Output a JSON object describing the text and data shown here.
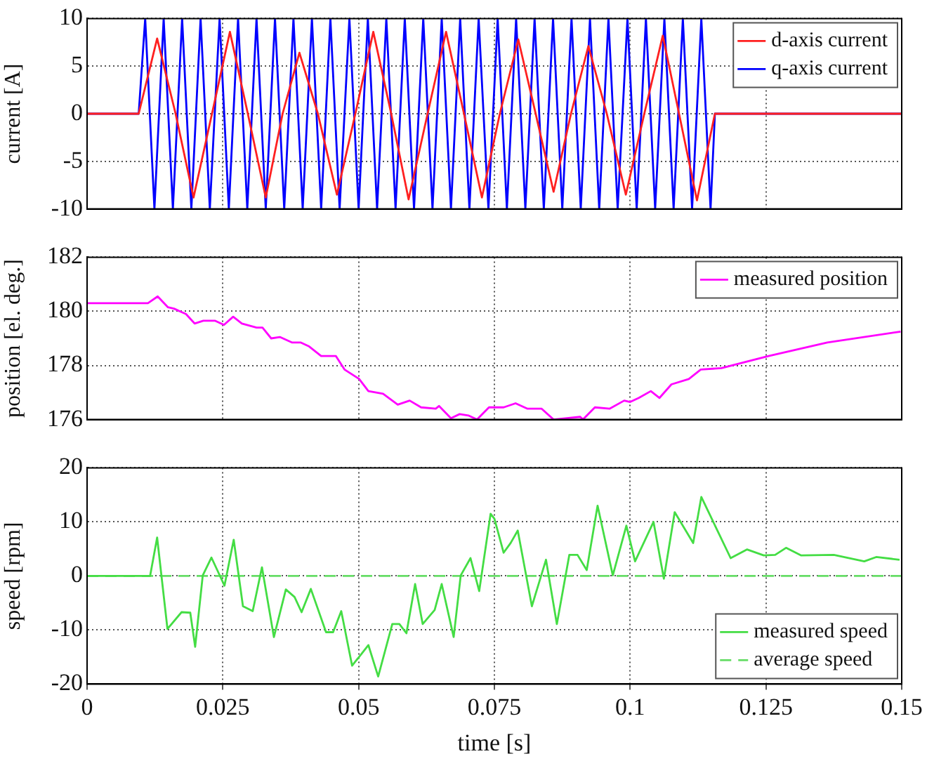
{
  "chart_data": [
    {
      "type": "line",
      "ylabel": "current [A]",
      "xlim": [
        0,
        0.15
      ],
      "xticks": [
        0,
        0.025,
        0.05,
        0.075,
        0.1,
        0.125,
        0.15
      ],
      "ylim": [
        -10,
        10
      ],
      "yticks": [
        -10,
        -5,
        0,
        5,
        10
      ],
      "tick_labels": "y",
      "grid": true,
      "legend": "top right",
      "marker": "none",
      "line_style": "solid",
      "series": [
        {
          "name": "d-axis current",
          "color": "#ff2020",
          "x": [
            0,
            0.0095,
            0.0129,
            0.0163,
            0.0196,
            0.023,
            0.0263,
            0.0296,
            0.0329,
            0.036,
            0.0391,
            0.0425,
            0.046,
            0.0494,
            0.0527,
            0.056,
            0.0592,
            0.0627,
            0.0661,
            0.0694,
            0.0727,
            0.076,
            0.0794,
            0.0826,
            0.0859,
            0.0891,
            0.0923,
            0.0957,
            0.0992,
            0.1026,
            0.106,
            0.109,
            0.1123,
            0.1156,
            0.15
          ],
          "values": [
            0,
            0,
            7.9,
            0,
            -8.8,
            0,
            8.6,
            0,
            -8.8,
            0,
            6.4,
            0,
            -8.5,
            0,
            8.6,
            0,
            -9,
            0,
            8.6,
            0,
            -8.8,
            0,
            7.8,
            0,
            -8.2,
            0,
            7.1,
            0,
            -8.5,
            0,
            8.2,
            0,
            -9.1,
            0,
            0
          ]
        },
        {
          "name": "q-axis current",
          "color": "#0000ff",
          "x": [
            0,
            0.0095,
            0.0107,
            0.0124,
            0.0141,
            0.0158,
            0.0175,
            0.0192,
            0.0209,
            0.0226,
            0.0244,
            0.0261,
            0.0278,
            0.0295,
            0.0312,
            0.0329,
            0.0346,
            0.0363,
            0.038,
            0.0397,
            0.0414,
            0.0431,
            0.0448,
            0.0465,
            0.0483,
            0.05,
            0.0517,
            0.0534,
            0.0551,
            0.0568,
            0.0585,
            0.0602,
            0.0619,
            0.0636,
            0.0653,
            0.067,
            0.0687,
            0.0704,
            0.0721,
            0.0739,
            0.0756,
            0.0773,
            0.079,
            0.0807,
            0.0824,
            0.0841,
            0.0858,
            0.0875,
            0.0892,
            0.0909,
            0.0926,
            0.0943,
            0.096,
            0.0977,
            0.0995,
            0.1012,
            0.1029,
            0.1046,
            0.1063,
            0.108,
            0.1097,
            0.1114,
            0.1131,
            0.1148,
            0.1156,
            0.15
          ],
          "values": [
            0,
            0,
            10,
            -10,
            10,
            -10,
            10,
            -10,
            10,
            -10,
            10,
            -10,
            10,
            -10,
            10,
            -10,
            10,
            -10,
            10,
            -10,
            10,
            -10,
            10,
            -10,
            10,
            -10,
            10,
            -10,
            10,
            -10,
            10,
            -10,
            10,
            -10,
            10,
            -10,
            10,
            -10,
            10,
            -10,
            10,
            -10,
            10,
            -10,
            10,
            -10,
            10,
            -10,
            10,
            -10,
            10,
            -10,
            10,
            -10,
            10,
            -10,
            10,
            -10,
            10,
            -10,
            10,
            -10,
            10,
            -10,
            0,
            0
          ]
        }
      ]
    },
    {
      "type": "line",
      "ylabel": "position [el. deg.]",
      "xlim": [
        0,
        0.15
      ],
      "xticks": [
        0,
        0.025,
        0.05,
        0.075,
        0.1,
        0.125,
        0.15
      ],
      "ylim": [
        176,
        182
      ],
      "yticks": [
        176,
        178,
        180,
        182
      ],
      "tick_labels": "y",
      "grid": true,
      "legend": "top right",
      "marker": "none",
      "line_style": "solid",
      "series": [
        {
          "name": "measured position",
          "color": "#ff00ff",
          "x": [
            0,
            0.0112,
            0.013,
            0.0149,
            0.016,
            0.0182,
            0.0198,
            0.0214,
            0.0236,
            0.0252,
            0.0269,
            0.0285,
            0.0312,
            0.0323,
            0.0339,
            0.0355,
            0.0377,
            0.0393,
            0.0409,
            0.0431,
            0.0458,
            0.0474,
            0.0501,
            0.0518,
            0.0545,
            0.0572,
            0.0594,
            0.0615,
            0.0642,
            0.0648,
            0.067,
            0.0686,
            0.0702,
            0.0718,
            0.074,
            0.0767,
            0.0789,
            0.0811,
            0.0837,
            0.0859,
            0.0908,
            0.0913,
            0.0935,
            0.0962,
            0.0989,
            0.1,
            0.1016,
            0.1038,
            0.1054,
            0.1076,
            0.1108,
            0.113,
            0.1168,
            0.1255,
            0.1363,
            0.1498
          ],
          "values": [
            180.3,
            180.3,
            180.55,
            180.15,
            180.1,
            179.9,
            179.55,
            179.65,
            179.65,
            179.5,
            179.8,
            179.55,
            179.4,
            179.4,
            179.0,
            179.05,
            178.85,
            178.85,
            178.7,
            178.35,
            178.35,
            177.85,
            177.5,
            177.05,
            176.95,
            176.55,
            176.7,
            176.45,
            176.4,
            176.5,
            176.05,
            176.2,
            176.15,
            176.0,
            176.45,
            176.45,
            176.6,
            176.4,
            176.4,
            176.0,
            176.1,
            176.0,
            176.45,
            176.4,
            176.7,
            176.65,
            176.8,
            177.05,
            176.8,
            177.3,
            177.5,
            177.85,
            177.9,
            178.35,
            178.85,
            179.25
          ]
        }
      ]
    },
    {
      "type": "line",
      "xlabel": "time [s]",
      "ylabel": "speed [rpm]",
      "xlim": [
        0,
        0.15
      ],
      "xticks": [
        0,
        0.025,
        0.05,
        0.075,
        0.1,
        0.125,
        0.15
      ],
      "ylim": [
        -20,
        20
      ],
      "yticks": [
        -20,
        -10,
        0,
        10,
        20
      ],
      "grid": true,
      "legend": "bottom right",
      "marker": "none",
      "line_style": "solid",
      "series": [
        {
          "name": "measured speed",
          "color": "#44dd44",
          "x": [
            0,
            0.0116,
            0.0129,
            0.0148,
            0.0174,
            0.019,
            0.0199,
            0.0213,
            0.0229,
            0.0253,
            0.027,
            0.0287,
            0.0305,
            0.0322,
            0.0344,
            0.0366,
            0.0382,
            0.0395,
            0.0412,
            0.044,
            0.0453,
            0.0468,
            0.0488,
            0.0518,
            0.0536,
            0.0562,
            0.0575,
            0.0588,
            0.0604,
            0.0618,
            0.064,
            0.0653,
            0.0675,
            0.0688,
            0.0706,
            0.0722,
            0.0743,
            0.075,
            0.0767,
            0.078,
            0.0793,
            0.0819,
            0.0845,
            0.0865,
            0.0888,
            0.0903,
            0.092,
            0.094,
            0.0968,
            0.0993,
            0.1009,
            0.1043,
            0.1062,
            0.1082,
            0.1116,
            0.1131,
            0.1185,
            0.1215,
            0.1246,
            0.1267,
            0.1287,
            0.1315,
            0.1375,
            0.1431,
            0.1453,
            0.1496
          ],
          "values": [
            0,
            0,
            7.1,
            -9.8,
            -6.7,
            -6.8,
            -13.1,
            0.1,
            3.4,
            -1.8,
            6.7,
            -5.6,
            -6.5,
            1.6,
            -11.3,
            -2.5,
            -3.9,
            -6.7,
            -2.4,
            -10.4,
            -10.4,
            -6.5,
            -16.6,
            -12.8,
            -18.6,
            -8.9,
            -8.9,
            -10.6,
            -1.5,
            -8.9,
            -6.3,
            -1.5,
            -11.3,
            0.1,
            3.3,
            -2.8,
            11.5,
            10.6,
            4.3,
            6.1,
            8.4,
            -5.6,
            3.0,
            -8.9,
            3.9,
            3.9,
            1.1,
            13,
            0.1,
            9.3,
            2.7,
            10,
            -0.5,
            11.8,
            6.1,
            14.6,
            3.3,
            4.9,
            3.8,
            3.9,
            5.2,
            3.8,
            3.9,
            2.7,
            3.5,
            3.0
          ]
        },
        {
          "name": "average speed",
          "color": "#66dd66",
          "line_style": "dashed",
          "x": [
            0,
            0.15
          ],
          "values": [
            0,
            0
          ]
        }
      ]
    }
  ]
}
